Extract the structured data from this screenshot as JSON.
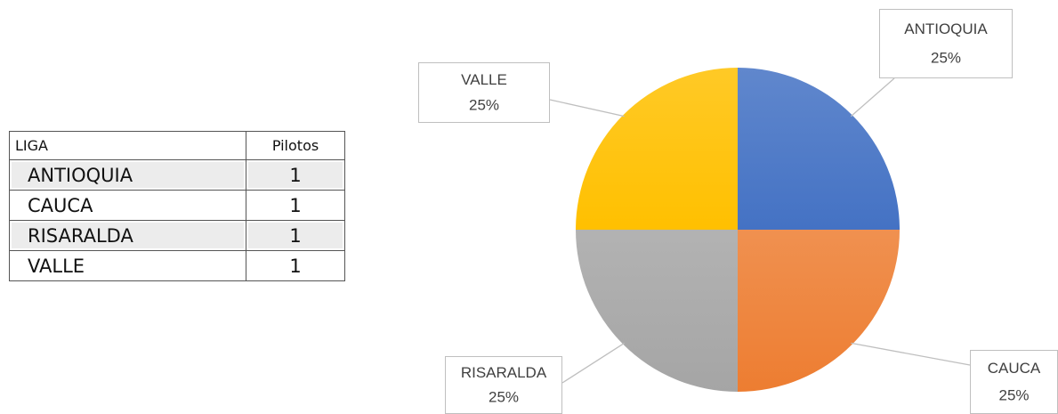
{
  "table": {
    "header": [
      "LIGA",
      "Pilotos"
    ],
    "rows": [
      [
        "ANTIOQUIA",
        1
      ],
      [
        "CAUCA",
        1
      ],
      [
        "RISARALDA",
        1
      ],
      [
        "VALLE",
        1
      ]
    ]
  },
  "chart_data": {
    "type": "pie",
    "categories": [
      "ANTIOQUIA",
      "CAUCA",
      "RISARALDA",
      "VALLE"
    ],
    "values": [
      25,
      25,
      25,
      25
    ],
    "value_labels": [
      "25%",
      "25%",
      "25%",
      "25%"
    ],
    "colors": [
      "#4472c4",
      "#ed7d31",
      "#a5a5a5",
      "#ffc000"
    ]
  }
}
